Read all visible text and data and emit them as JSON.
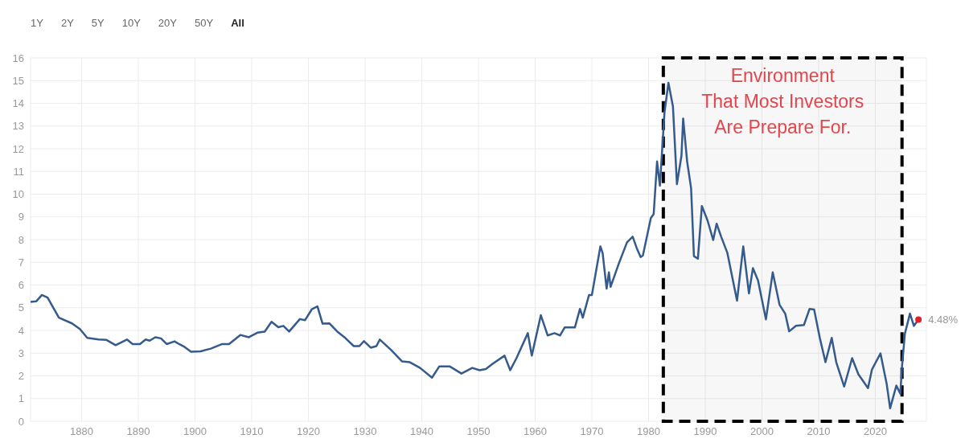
{
  "chart_data": {
    "type": "line",
    "x": [
      1871,
      1872,
      1873,
      1874,
      1876,
      1878.3,
      1879.7,
      1881,
      1883,
      1884.4,
      1886,
      1888,
      1889,
      1890.3,
      1891.3,
      1892,
      1893,
      1894,
      1895,
      1896.4,
      1897.2,
      1898,
      1899.3,
      1901,
      1902.8,
      1904.8,
      1906,
      1908,
      1909.5,
      1911,
      1912.3,
      1913.5,
      1914.7,
      1915.6,
      1916.6,
      1918.5,
      1919.4,
      1920.6,
      1921.6,
      1922.5,
      1923.7,
      1925.1,
      1926.5,
      1928,
      1929,
      1929.8,
      1931,
      1932,
      1932.6,
      1934.6,
      1936.5,
      1937.9,
      1939.7,
      1941.8,
      1943.1,
      1944.9,
      1947,
      1948.9,
      1950.2,
      1951.3,
      1952.5,
      1954.6,
      1955.6,
      1956.7,
      1958.7,
      1959.4,
      1961,
      1962.2,
      1963.4,
      1964.4,
      1965.2,
      1967,
      1967.9,
      1968.4,
      1969.5,
      1970,
      1971.5,
      1971.9,
      1972.6,
      1973,
      1973.3,
      1974.7,
      1976.2,
      1977.2,
      1977.9,
      1978.6,
      1979,
      1980.4,
      1980.9,
      1981.5,
      1982,
      1982.8,
      1983.5,
      1984.3,
      1985,
      1985.8,
      1986.1,
      1986.8,
      1987.5,
      1988,
      1988.7,
      1989.4,
      1990.4,
      1991.4,
      1992,
      1992.8,
      1993.9,
      1995.6,
      1996.7,
      1997.7,
      1998.4,
      1999.3,
      2000.7,
      2001.9,
      2003.1,
      2004.1,
      2004.8,
      2006,
      2007.4,
      2008.4,
      2009.2,
      2010.2,
      2011.2,
      2012.3,
      2013.1,
      2014.5,
      2015.9,
      2017,
      2018.7,
      2019.4,
      2020.9,
      2022,
      2022.6,
      2023.7,
      2024.4,
      2024.7,
      2025.2,
      2026.1,
      2026.8,
      2027.6
    ],
    "series": [
      {
        "color": "#355a8c",
        "values": [
          5.26,
          5.28,
          5.56,
          5.45,
          4.56,
          4.31,
          4.06,
          3.67,
          3.6,
          3.58,
          3.35,
          3.6,
          3.4,
          3.4,
          3.6,
          3.55,
          3.7,
          3.65,
          3.4,
          3.52,
          3.4,
          3.3,
          3.06,
          3.08,
          3.2,
          3.4,
          3.4,
          3.8,
          3.7,
          3.9,
          3.95,
          4.38,
          4.14,
          4.2,
          3.95,
          4.5,
          4.45,
          4.93,
          5.06,
          4.3,
          4.31,
          3.95,
          3.67,
          3.31,
          3.31,
          3.53,
          3.24,
          3.31,
          3.6,
          3.14,
          2.64,
          2.6,
          2.35,
          1.92,
          2.42,
          2.42,
          2.1,
          2.35,
          2.25,
          2.3,
          2.53,
          2.89,
          2.25,
          2.78,
          3.88,
          2.89,
          4.67,
          3.78,
          3.88,
          3.78,
          4.13,
          4.13,
          4.95,
          4.56,
          5.56,
          5.56,
          7.7,
          7.4,
          5.84,
          6.56,
          5.92,
          6.91,
          7.88,
          8.13,
          7.63,
          7.23,
          7.3,
          8.95,
          9.12,
          11.44,
          10.37,
          13.58,
          14.9,
          13.86,
          10.44,
          11.69,
          13.33,
          11.44,
          10.26,
          7.27,
          7.16,
          9.48,
          8.84,
          7.98,
          8.7,
          8.13,
          7.41,
          5.31,
          7.7,
          5.63,
          6.74,
          6.2,
          4.49,
          6.56,
          5.13,
          4.74,
          3.96,
          4.2,
          4.24,
          4.95,
          4.92,
          3.67,
          2.6,
          3.67,
          2.6,
          1.53,
          2.78,
          2.07,
          1.46,
          2.28,
          2.99,
          1.64,
          0.57,
          1.57,
          1.21,
          2.42,
          3.85,
          4.74,
          4.2,
          4.48
        ]
      }
    ],
    "xlim": [
      1871,
      2029
    ],
    "xticks": [
      1880,
      1890,
      1900,
      1910,
      1920,
      1930,
      1940,
      1950,
      1960,
      1970,
      1980,
      1990,
      2000,
      2010,
      2020
    ],
    "ylim": [
      0,
      16
    ],
    "yticks": [
      0,
      1,
      2,
      3,
      4,
      5,
      6,
      7,
      8,
      9,
      10,
      11,
      12,
      13,
      14,
      15,
      16
    ],
    "grid": true,
    "marker": "none",
    "line_style": "solid",
    "bands": [
      {
        "axis": "x",
        "from": 1982.6,
        "to": 2024.7,
        "label": "Environment\nThat Most Investors\nAre Prepare For.",
        "color": "#000000"
      }
    ],
    "annotations": [
      "1Y",
      "2Y",
      "5Y",
      "10Y",
      "20Y",
      "50Y",
      "All",
      {
        "text": "4.48%",
        "x": 2027.6,
        "y": 4.48
      }
    ]
  }
}
